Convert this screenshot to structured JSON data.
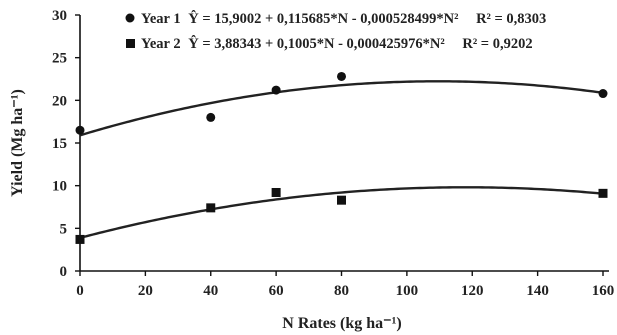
{
  "chart_data": {
    "type": "scatter",
    "xlabel": "N Rates (kg ha⁻¹)",
    "ylabel": "Yield (Mg ha⁻¹)",
    "xlim": [
      0,
      160
    ],
    "ylim": [
      0,
      30
    ],
    "xticks": [
      "0",
      "20",
      "40",
      "60",
      "80",
      "100",
      "120",
      "140",
      "160"
    ],
    "yticks": [
      "0",
      "5",
      "10",
      "15",
      "20",
      "25",
      "30"
    ],
    "grid": false,
    "legend_position": "top",
    "series": [
      {
        "name": "Year 1",
        "marker": "circle",
        "equation": "Ŷ = 15,9002 + 0,115685*N - 0,000528499*N²",
        "r2": "R² = 0,8303",
        "coefficients": [
          15.9002,
          0.115685,
          -0.000528499
        ],
        "x": [
          0,
          40,
          60,
          80,
          160
        ],
        "y": [
          16.5,
          18.0,
          21.2,
          22.8,
          20.8
        ]
      },
      {
        "name": "Year 2",
        "marker": "square",
        "equation": "Ŷ = 3,88343 + 0,1005*N - 0,000425976*N²",
        "r2": "R² = 0,9202",
        "coefficients": [
          3.88343,
          0.1005,
          -0.000425976
        ],
        "x": [
          0,
          40,
          60,
          80,
          160
        ],
        "y": [
          3.7,
          7.4,
          9.2,
          8.3,
          9.1
        ]
      }
    ]
  }
}
